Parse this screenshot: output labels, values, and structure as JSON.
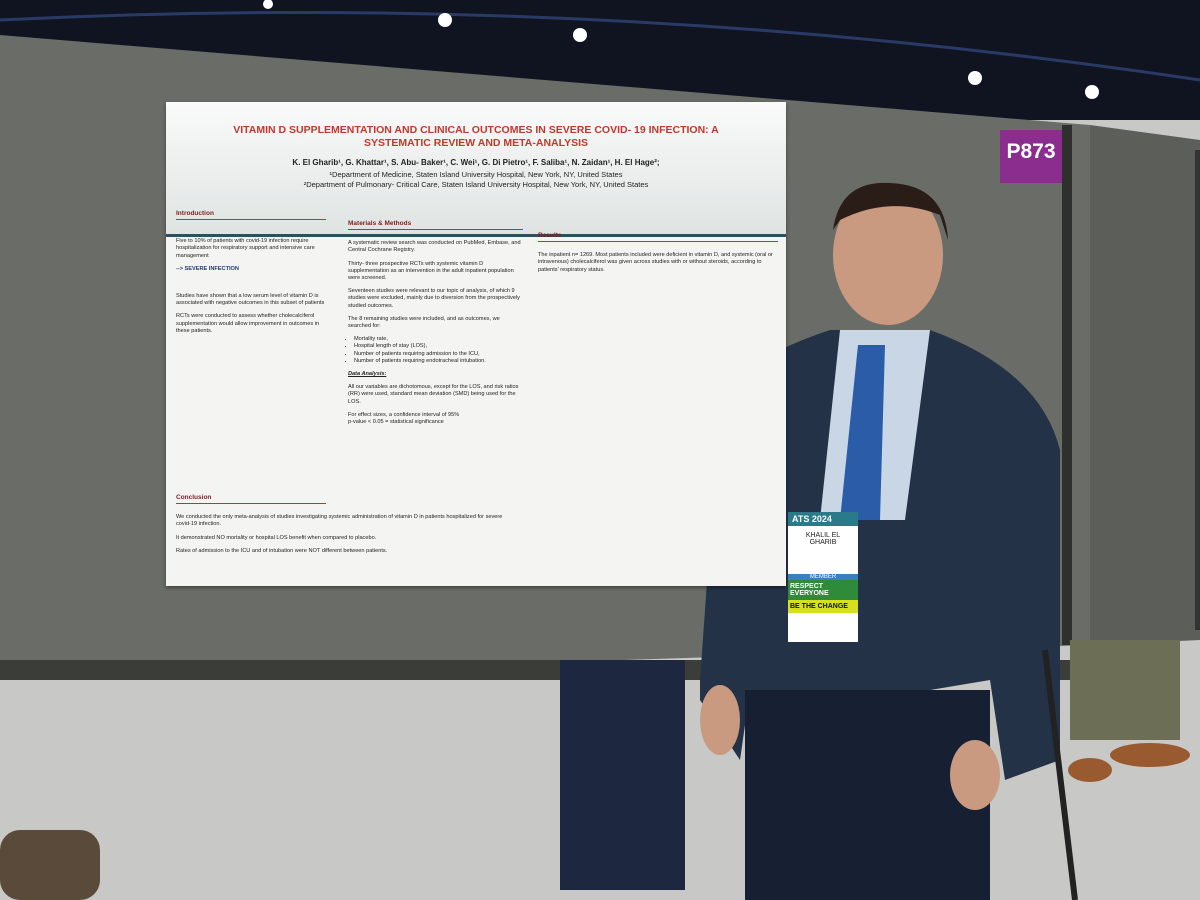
{
  "booth": "P873",
  "poster": {
    "title": "VITAMIN D SUPPLEMENTATION AND CLINICAL OUTCOMES IN SEVERE COVID- 19 INFECTION: A SYSTEMATIC REVIEW AND META-ANALYSIS",
    "authors": "K. El Gharib¹, G. Khattar¹, S. Abu- Baker¹, C. Wei¹, G. Di Pietro¹, F. Saliba¹, N. Zaidan¹, H. El Hage²;",
    "affiliations": [
      "¹Department of Medicine, Staten Island University Hospital, New York, NY, United States",
      "²Department of Pulmonary- Critical Care, Staten Island University Hospital, New York, NY, United States"
    ],
    "introduction": {
      "heading": "Introduction",
      "paragraphs": [
        "Five to 10% of patients with covid-19 infection require hospitalization for respiratory support and intensive care management",
        "--> SEVERE INFECTION",
        "Studies have shown that a low serum level of vitamin D is associated with negative outcomes in this subset of patients",
        "RCTs were conducted to assess whether cholecalciferol supplementation would allow improvement in outcomes in these patients."
      ]
    },
    "methods": {
      "heading": "Materials & Methods",
      "paragraphs": [
        "A systematic review search was conducted on PubMed, Embase, and Central Cochrane Registry.",
        "Thirty- three prospective RCTs with systemic vitamin D supplementation as an intervention in the adult inpatient population were screened.",
        "Seventeen studies were relevant to our topic of analysis, of which 9 studies were excluded, mainly due to diversion from the prospectively studied outcomes.",
        "The 8 remaining studies were included, and as outcomes, we searched for:"
      ],
      "outcomes": [
        "Mortality rate,",
        "Hospital length of stay (LOS),",
        "Number of patients requiring admission to the ICU,",
        "Number of patients requiring endotracheal intubation."
      ],
      "analysis_heading": "Data Analysis:",
      "analysis": [
        "All our variables are dichotomous, except for the LOS, and risk ratios (RR) were used, standard mean deviation (SMD) being used for the LOS.",
        "For effect sizes, a confidence interval of 95%",
        "p-value < 0.05 = statistical significance"
      ]
    },
    "results": {
      "heading": "Results",
      "text": "The inpatient n= 1269. Most patients included were deficient in vitamin D, and systemic (oral or intravenous) cholecalciferol was given across studies with or without steroids, according to patients' respiratory status."
    },
    "conclusion": {
      "heading": "Conclusion",
      "paragraphs": [
        "We conducted the only meta-analysis of studies investigating systemic administration of vitamin D in patients hospitalized for severe covid-19 infection.",
        "It demonstrated NO mortality or hospital LOS benefit when compared to placebo.",
        "Rates of admission to the ICU and of intubation were NOT different between patients."
      ]
    }
  },
  "badge": {
    "event": "ATS 2024",
    "name": "KHALIL EL GHARIB",
    "role": "MEMBER",
    "slogans": [
      "RESPECT EVERYONE",
      "BE THE CHANGE"
    ]
  }
}
